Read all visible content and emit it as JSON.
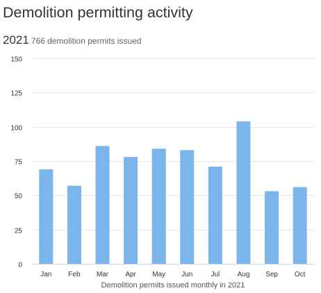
{
  "header": {
    "title": "Demolition permitting activity"
  },
  "summary": {
    "year": "2021",
    "text": "766 demolition permits issued"
  },
  "colors": {
    "bar": "#7cb5ec",
    "grid": "#e6e6e6",
    "axis_line": "#ccd6eb",
    "tick_text": "#333333",
    "label_text": "#555555"
  },
  "chart_data": {
    "type": "bar",
    "title": "",
    "categories": [
      "Jan",
      "Feb",
      "Mar",
      "Apr",
      "May",
      "Jun",
      "Jul",
      "Aug",
      "Sep",
      "Oct"
    ],
    "values": [
      69,
      57,
      86,
      78,
      84,
      83,
      71,
      104,
      53,
      56
    ],
    "xlabel": "Demolition permits issued monthly in 2021",
    "ylabel": "",
    "ylim": [
      0,
      150
    ],
    "yticks": [
      0,
      25,
      50,
      75,
      100,
      125,
      150
    ],
    "grid": true,
    "legend": "none"
  }
}
